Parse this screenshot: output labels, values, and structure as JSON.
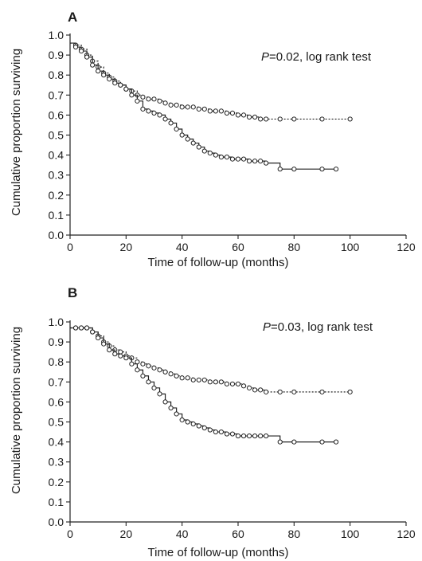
{
  "chart_data": [
    {
      "type": "line",
      "panel": "A",
      "title": "",
      "xlabel": "Time of follow-up (months)",
      "ylabel": "Cumulative proportion surviving",
      "xlim": [
        0,
        120
      ],
      "ylim": [
        0.0,
        1.0
      ],
      "xticks": [
        "0",
        "20",
        "40",
        "60",
        "80",
        "100",
        "120"
      ],
      "yticks": [
        "0.0",
        "0.1",
        "0.2",
        "0.3",
        "0.4",
        "0.5",
        "0.6",
        "0.7",
        "0.8",
        "0.9",
        "1.0"
      ],
      "grid": false,
      "annotation": {
        "p_label": "P",
        "p_text": "=0.02, log rank test"
      },
      "series": [
        {
          "style": "dotted",
          "marker": "circle",
          "x": [
            0,
            2,
            4,
            6,
            8,
            10,
            12,
            14,
            16,
            18,
            20,
            22,
            24,
            26,
            28,
            30,
            32,
            34,
            36,
            38,
            40,
            42,
            44,
            46,
            48,
            50,
            52,
            54,
            56,
            58,
            60,
            62,
            64,
            66,
            68,
            70,
            75,
            80,
            90,
            100
          ],
          "y": [
            0.96,
            0.95,
            0.93,
            0.9,
            0.87,
            0.84,
            0.81,
            0.79,
            0.77,
            0.75,
            0.73,
            0.72,
            0.7,
            0.69,
            0.68,
            0.68,
            0.67,
            0.66,
            0.65,
            0.65,
            0.64,
            0.64,
            0.64,
            0.63,
            0.63,
            0.62,
            0.62,
            0.62,
            0.61,
            0.61,
            0.6,
            0.6,
            0.59,
            0.59,
            0.58,
            0.58,
            0.58,
            0.58,
            0.58,
            0.58
          ]
        },
        {
          "style": "solid",
          "marker": "circle",
          "x": [
            0,
            2,
            4,
            6,
            8,
            10,
            12,
            14,
            16,
            18,
            20,
            22,
            24,
            26,
            28,
            30,
            32,
            34,
            36,
            38,
            40,
            42,
            44,
            46,
            48,
            50,
            52,
            54,
            56,
            58,
            60,
            62,
            64,
            66,
            68,
            70,
            75,
            80,
            90,
            95
          ],
          "y": [
            0.96,
            0.94,
            0.92,
            0.89,
            0.85,
            0.82,
            0.8,
            0.78,
            0.76,
            0.75,
            0.73,
            0.7,
            0.67,
            0.63,
            0.62,
            0.61,
            0.6,
            0.58,
            0.56,
            0.53,
            0.5,
            0.48,
            0.46,
            0.44,
            0.42,
            0.41,
            0.4,
            0.39,
            0.39,
            0.38,
            0.38,
            0.38,
            0.37,
            0.37,
            0.37,
            0.36,
            0.33,
            0.33,
            0.33,
            0.33
          ]
        }
      ]
    },
    {
      "type": "line",
      "panel": "B",
      "title": "",
      "xlabel": "Time of follow-up (months)",
      "ylabel": "Cumulative proportion surviving",
      "xlim": [
        0,
        120
      ],
      "ylim": [
        0.0,
        1.0
      ],
      "xticks": [
        "0",
        "20",
        "40",
        "60",
        "80",
        "100",
        "120"
      ],
      "yticks": [
        "0.0",
        "0.1",
        "0.2",
        "0.3",
        "0.4",
        "0.5",
        "0.6",
        "0.7",
        "0.8",
        "0.9",
        "1.0"
      ],
      "grid": false,
      "annotation": {
        "p_label": "P",
        "p_text": "=0.03, log rank test"
      },
      "series": [
        {
          "style": "dotted",
          "marker": "circle",
          "x": [
            0,
            2,
            4,
            6,
            8,
            10,
            12,
            14,
            16,
            18,
            20,
            22,
            24,
            26,
            28,
            30,
            32,
            34,
            36,
            38,
            40,
            42,
            44,
            46,
            48,
            50,
            52,
            54,
            56,
            58,
            60,
            62,
            64,
            66,
            68,
            70,
            75,
            80,
            90,
            100
          ],
          "y": [
            0.97,
            0.97,
            0.97,
            0.97,
            0.95,
            0.93,
            0.9,
            0.88,
            0.86,
            0.85,
            0.83,
            0.82,
            0.8,
            0.79,
            0.78,
            0.77,
            0.76,
            0.75,
            0.74,
            0.73,
            0.72,
            0.72,
            0.71,
            0.71,
            0.71,
            0.7,
            0.7,
            0.7,
            0.69,
            0.69,
            0.69,
            0.68,
            0.67,
            0.66,
            0.66,
            0.65,
            0.65,
            0.65,
            0.65,
            0.65
          ]
        },
        {
          "style": "solid",
          "marker": "circle",
          "x": [
            0,
            2,
            4,
            6,
            8,
            10,
            12,
            14,
            16,
            18,
            20,
            22,
            24,
            26,
            28,
            30,
            32,
            34,
            36,
            38,
            40,
            42,
            44,
            46,
            48,
            50,
            52,
            54,
            56,
            58,
            60,
            62,
            64,
            66,
            68,
            70,
            75,
            80,
            90,
            95
          ],
          "y": [
            0.97,
            0.97,
            0.97,
            0.97,
            0.95,
            0.92,
            0.89,
            0.86,
            0.84,
            0.83,
            0.82,
            0.79,
            0.76,
            0.73,
            0.7,
            0.67,
            0.64,
            0.6,
            0.57,
            0.54,
            0.51,
            0.5,
            0.49,
            0.48,
            0.47,
            0.46,
            0.45,
            0.45,
            0.44,
            0.44,
            0.43,
            0.43,
            0.43,
            0.43,
            0.43,
            0.43,
            0.4,
            0.4,
            0.4,
            0.4
          ]
        }
      ]
    }
  ]
}
